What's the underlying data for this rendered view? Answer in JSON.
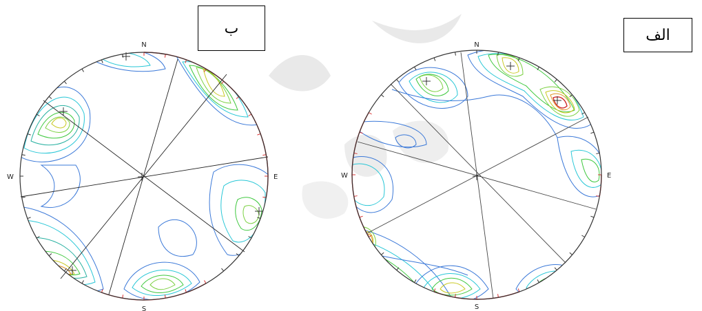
{
  "panels": [
    {
      "label": "ب",
      "directions": {
        "n": "N",
        "e": "E",
        "s": "S",
        "w": "W"
      }
    },
    {
      "label": "الف",
      "directions": {
        "n": "N",
        "e": "E",
        "s": "S",
        "w": "W"
      }
    }
  ],
  "colors": {
    "circle": "#333333",
    "red_ticks": "#d93030",
    "lines": "#222222",
    "contour_blue": "#3a78d8",
    "contour_cyan": "#26c6d6",
    "contour_green": "#3ec83e",
    "contour_yellow": "#c8c820",
    "contour_orange": "#e09020",
    "contour_red": "#d02828"
  }
}
